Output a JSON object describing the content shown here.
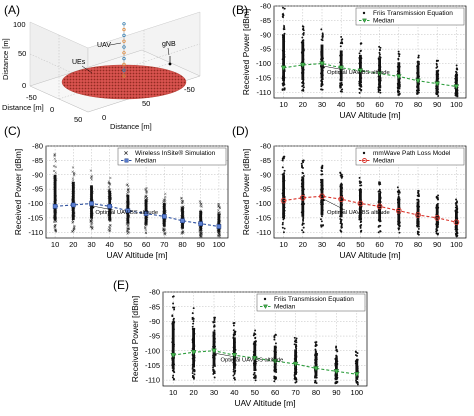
{
  "panel_labels": [
    "(A)",
    "(B)",
    "(C)",
    "(D)",
    "(E)"
  ],
  "chart_data": [
    {
      "id": "A",
      "type": "scatter3d",
      "labels": {
        "uav": "UAV",
        "ues": "UEs",
        "gnb": "gNB"
      },
      "xlabel": "Distance [m]",
      "ylabel": "Distance [m]",
      "zlabel": "Distance [m]",
      "z_ticks": [
        "0",
        "50",
        "100"
      ],
      "y_ticks": [
        "-50",
        "0",
        "50"
      ],
      "x_ticks": [
        "0",
        "50",
        "-50"
      ],
      "colors": {
        "ues": "#c0392b",
        "uav": "#1f77b4"
      }
    },
    {
      "id": "B",
      "type": "scatter",
      "xlabel": "UAV Altitude [m]",
      "ylabel": "Received Power [dBm]",
      "x": [
        10,
        20,
        30,
        40,
        50,
        60,
        70,
        80,
        90,
        100
      ],
      "ylim": [
        -112,
        -80
      ],
      "yticks": [
        -80,
        -85,
        -90,
        -95,
        -100,
        -105,
        -110
      ],
      "median": [
        -101.5,
        -100.5,
        -100.0,
        -101.5,
        -102.5,
        -103.5,
        -104.5,
        -106.0,
        -107.0,
        -108.0
      ],
      "spread_top": [
        -80.5,
        -85.5,
        -88.0,
        -90.5,
        -92.5,
        -94.0,
        -95.5,
        -97.0,
        -98.5,
        -100.0
      ],
      "spread_bottom": [
        -110.0,
        -110.0,
        -109.5,
        -110.0,
        -110.5,
        -110.5,
        -111.0,
        -111.0,
        -111.5,
        -111.5
      ],
      "legend": [
        "Friis Transmission Equation",
        "Median"
      ],
      "marker_style": "dot",
      "median_marker": "triangle",
      "median_color": "#2e9e3e",
      "annotation": "Optimal UAV-BS altitude",
      "annotation_x": 30
    },
    {
      "id": "C",
      "type": "scatter",
      "xlabel": "UAV Altitude [m]",
      "ylabel": "Received Power [dBm]",
      "x": [
        10,
        20,
        30,
        40,
        50,
        60,
        70,
        80,
        90,
        100
      ],
      "ylim": [
        -112,
        -80
      ],
      "yticks": [
        -80,
        -85,
        -90,
        -95,
        -100,
        -105,
        -110
      ],
      "median": [
        -101.0,
        -100.5,
        -100.0,
        -101.0,
        -102.5,
        -103.5,
        -104.5,
        -106.0,
        -107.0,
        -108.0
      ],
      "spread_top": [
        -81.0,
        -86.0,
        -88.5,
        -91.0,
        -92.5,
        -94.5,
        -96.0,
        -97.5,
        -99.0,
        -100.0
      ],
      "spread_bottom": [
        -110.0,
        -110.0,
        -109.5,
        -110.0,
        -110.5,
        -110.5,
        -111.0,
        -111.0,
        -111.5,
        -111.5
      ],
      "legend": [
        "Wireless InSite® Simulation",
        "Median"
      ],
      "marker_style": "x",
      "median_marker": "square",
      "median_color": "#2c4f9e",
      "annotation": "Optimal UAV-BS altitude",
      "annotation_x": 30
    },
    {
      "id": "D",
      "type": "scatter",
      "xlabel": "UAV Altitude [m]",
      "ylabel": "Received Power [dBm]",
      "x": [
        10,
        20,
        30,
        40,
        50,
        60,
        70,
        80,
        90,
        100
      ],
      "ylim": [
        -112,
        -80
      ],
      "yticks": [
        -80,
        -85,
        -90,
        -95,
        -100,
        -105,
        -110
      ],
      "median": [
        -99.0,
        -98.0,
        -97.5,
        -98.5,
        -100.0,
        -101.0,
        -102.5,
        -104.0,
        -105.0,
        -106.5
      ],
      "spread_top": [
        -83.0,
        -85.0,
        -86.5,
        -89.0,
        -91.0,
        -92.5,
        -94.0,
        -95.5,
        -97.0,
        -98.5
      ],
      "spread_bottom": [
        -110.0,
        -110.0,
        -109.5,
        -110.0,
        -110.0,
        -110.5,
        -110.5,
        -111.0,
        -111.0,
        -111.5
      ],
      "legend": [
        "mmWave Path Loss Model",
        "Median"
      ],
      "marker_style": "dot",
      "median_marker": "circle",
      "median_color": "#d9342b",
      "annotation": "Optimal UAV-BS altitude",
      "annotation_x": 30
    },
    {
      "id": "E",
      "type": "scatter",
      "xlabel": "UAV Altitude [m]",
      "ylabel": "Received Power [dBm]",
      "x": [
        10,
        20,
        30,
        40,
        50,
        60,
        70,
        80,
        90,
        100
      ],
      "ylim": [
        -112,
        -80
      ],
      "yticks": [
        -80,
        -85,
        -90,
        -95,
        -100,
        -105,
        -110
      ],
      "median": [
        -101.5,
        -100.5,
        -100.0,
        -101.5,
        -102.5,
        -103.5,
        -104.5,
        -106.0,
        -107.0,
        -108.0
      ],
      "spread_top": [
        -80.5,
        -85.5,
        -88.0,
        -90.5,
        -92.5,
        -94.0,
        -95.5,
        -97.0,
        -98.5,
        -100.0
      ],
      "spread_bottom": [
        -110.0,
        -110.0,
        -109.5,
        -110.0,
        -110.5,
        -110.5,
        -111.0,
        -111.0,
        -111.5,
        -111.5
      ],
      "legend": [
        "Friis Transmission Equation",
        "Median"
      ],
      "marker_style": "dot",
      "median_marker": "triangle",
      "median_color": "#2e9e3e",
      "annotation": "Optimal UAV-BS altitude",
      "annotation_x": 30
    }
  ]
}
